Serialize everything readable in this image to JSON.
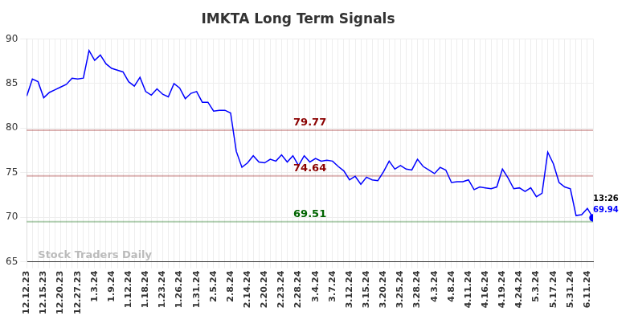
{
  "chart_data": {
    "type": "line",
    "title": "IMKTA Long Term Signals",
    "categories": [
      "12.12.23",
      null,
      null,
      "12.15.23",
      null,
      null,
      "12.20.23",
      null,
      null,
      "12.27.23",
      null,
      null,
      "1.3.24",
      null,
      null,
      "1.9.24",
      null,
      null,
      "1.12.24",
      null,
      null,
      "1.18.24",
      null,
      null,
      "1.23.24",
      null,
      null,
      "1.26.24",
      null,
      null,
      "1.31.24",
      null,
      null,
      "2.5.24",
      null,
      null,
      "2.8.24",
      null,
      null,
      "2.14.24",
      null,
      null,
      "2.20.24",
      null,
      null,
      "2.23.24",
      null,
      null,
      "2.28.24",
      null,
      null,
      "3.4.24",
      null,
      null,
      "3.7.24",
      null,
      null,
      "3.12.24",
      null,
      null,
      "3.15.24",
      null,
      null,
      "3.20.24",
      null,
      null,
      "3.25.24",
      null,
      null,
      "3.28.24",
      null,
      null,
      "4.3.24",
      null,
      null,
      "4.8.24",
      null,
      null,
      "4.11.24",
      null,
      null,
      "4.16.24",
      null,
      null,
      "4.19.24",
      null,
      null,
      "4.24.24",
      null,
      null,
      "5.3.24",
      null,
      null,
      "5.17.24",
      null,
      null,
      "5.31.24",
      null,
      null,
      "6.11.24",
      null
    ],
    "values": [
      83.6,
      85.5,
      85.2,
      83.4,
      84.0,
      84.3,
      84.6,
      84.9,
      85.6,
      85.5,
      85.6,
      88.7,
      87.6,
      88.2,
      87.2,
      86.7,
      86.5,
      86.3,
      85.2,
      84.7,
      85.7,
      84.1,
      83.7,
      84.4,
      83.8,
      83.5,
      85.0,
      84.5,
      83.3,
      83.9,
      84.1,
      82.9,
      82.9,
      81.9,
      82.0,
      82.0,
      81.7,
      77.4,
      75.6,
      76.1,
      76.9,
      76.2,
      76.1,
      76.5,
      76.3,
      77.0,
      76.2,
      76.9,
      75.8,
      76.9,
      76.2,
      76.6,
      76.3,
      76.4,
      76.3,
      75.7,
      75.2,
      74.2,
      74.6,
      73.7,
      74.5,
      74.2,
      74.1,
      75.1,
      76.3,
      75.4,
      75.8,
      75.4,
      75.3,
      76.5,
      75.7,
      75.3,
      74.9,
      75.6,
      75.3,
      73.9,
      74.0,
      74.0,
      74.2,
      73.1,
      73.4,
      73.3,
      73.2,
      73.4,
      75.4,
      74.4,
      73.2,
      73.3,
      72.9,
      73.3,
      72.3,
      72.7,
      77.3,
      76.0,
      73.9,
      73.4,
      73.2,
      70.2,
      70.3,
      71.0,
      69.94
    ],
    "color": "#0000ff",
    "ylim": [
      65,
      90
    ],
    "yticks": [
      65,
      70,
      75,
      80,
      85,
      90
    ],
    "grid": true,
    "annotations": [
      {
        "value": 79.77,
        "label": "79.77",
        "color": "#8b0000"
      },
      {
        "value": 74.64,
        "label": "74.64",
        "color": "#8b0000"
      },
      {
        "value": 69.51,
        "label": "69.51",
        "color": "#006400"
      }
    ],
    "last_label": {
      "time": "13:26",
      "value": 69.94
    },
    "watermark": "Stock Traders Daily"
  }
}
